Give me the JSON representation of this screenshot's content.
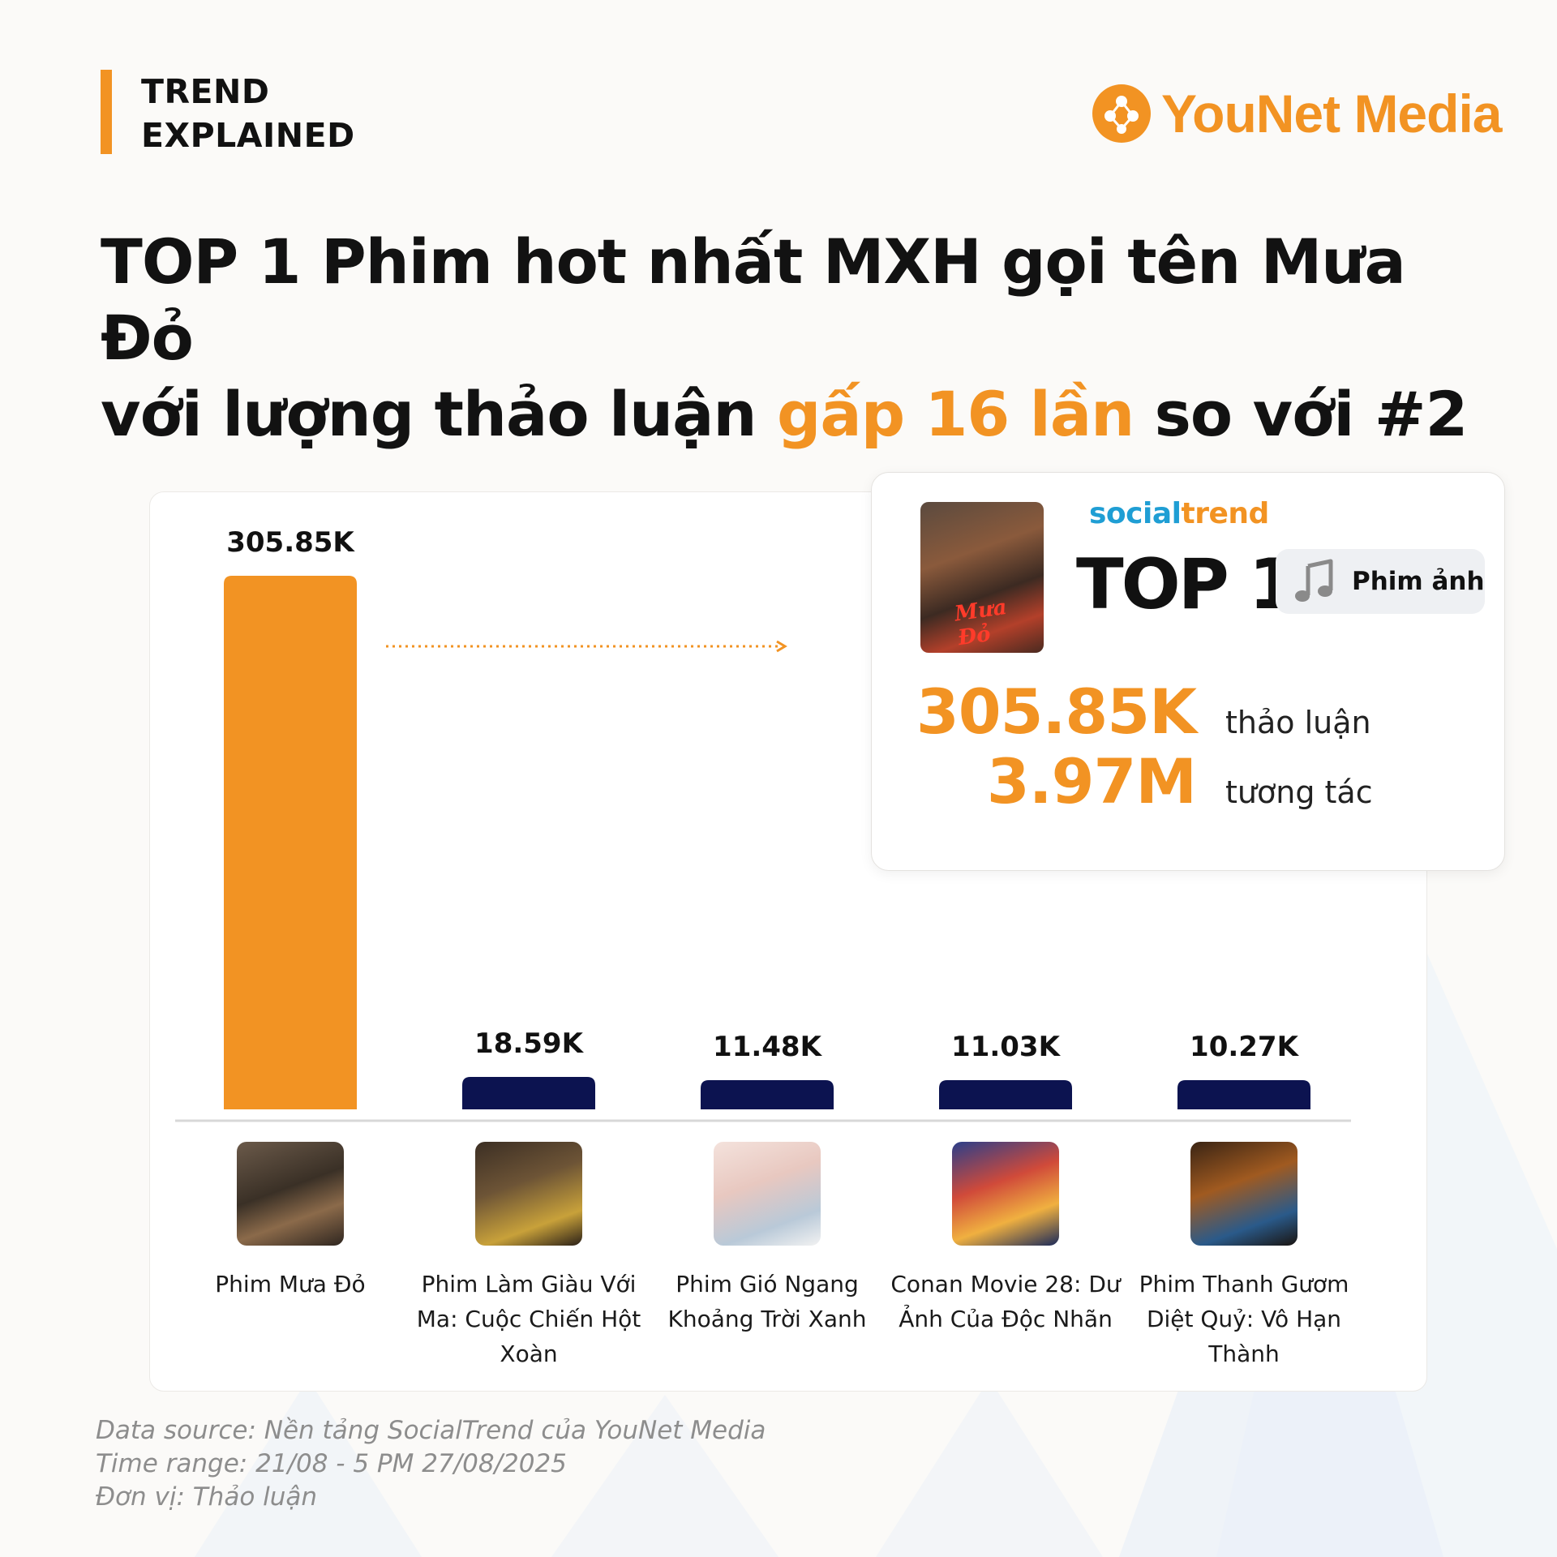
{
  "header": {
    "tag_line1": "TREND",
    "tag_line2": "EXPLAINED",
    "logo_text": "YouNet Media"
  },
  "headline": {
    "line1": "TOP 1 Phim hot nhất MXH gọi tên Mưa Đỏ",
    "line2_before": "với lượng thảo luận ",
    "line2_highlight": "gấp 16 lần",
    "line2_after": " so với #2"
  },
  "info_card": {
    "brand_part1": "social",
    "brand_part2": "trend",
    "rank": "TOP 1",
    "category": "Phim ảnh",
    "poster_title": "Mưa Đỏ",
    "metric1_value": "305.85K",
    "metric1_label": "thảo luận",
    "metric2_value": "3.97M",
    "metric2_label": "tương tác"
  },
  "chart_data": {
    "type": "bar",
    "categories": [
      "Phim Mưa Đỏ",
      "Phim Làm Giàu Với Ma: Cuộc Chiến Hột Xoàn",
      "Phim Gió Ngang Khoảng Trời Xanh",
      "Conan Movie 28: Dư Ảnh Của Độc Nhãn",
      "Phim Thanh Gươm Diệt Quỷ: Vô Hạn Thành"
    ],
    "values": [
      305.85,
      18.59,
      11.48,
      11.03,
      10.27
    ],
    "value_labels": [
      "305.85K",
      "18.59K",
      "11.48K",
      "11.03K",
      "10.27K"
    ],
    "ylim": [
      0,
      305.85
    ],
    "colors": [
      "#f29323",
      "#0c1350",
      "#0c1350",
      "#0c1350",
      "#0c1350"
    ],
    "grid": false
  },
  "footer": {
    "line1": "Data source: Nền tảng SocialTrend của YouNet Media",
    "line2": "Time range: 21/08 - 5 PM 27/08/2025",
    "line3": "Đơn vị: Thảo luận"
  },
  "colors": {
    "accent": "#f29323",
    "navy": "#0c1350",
    "brand_blue": "#1f9ed4"
  }
}
